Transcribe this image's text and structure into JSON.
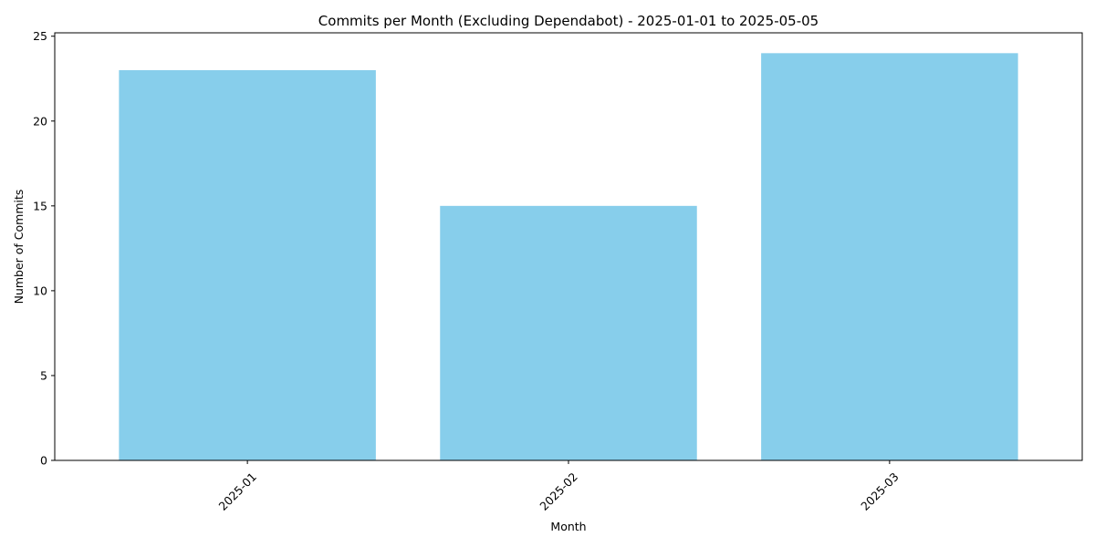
{
  "chart_data": {
    "type": "bar",
    "title": "Commits per Month (Excluding Dependabot) - 2025-01-01 to 2025-05-05",
    "xlabel": "Month",
    "ylabel": "Number of Commits",
    "categories": [
      "2025-01",
      "2025-02",
      "2025-03"
    ],
    "values": [
      23,
      15,
      24
    ],
    "ylim": [
      0,
      25.2
    ],
    "yticks": [
      0,
      5,
      10,
      15,
      20,
      25
    ],
    "bar_color": "#87ceeb",
    "grid": false,
    "legend": "none",
    "x_tick_rotation": "45 degrees"
  }
}
